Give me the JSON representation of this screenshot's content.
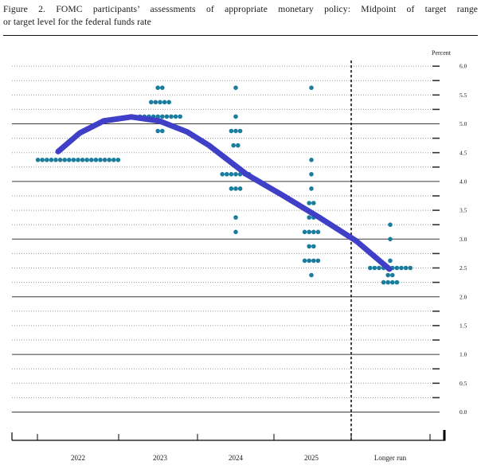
{
  "figure": {
    "title_line1": "Figure 2.  FOMC participants’ assessments of appropriate monetary policy:  Midpoint of target range",
    "title_line2": "or target level for the federal funds rate"
  },
  "colors": {
    "dot": "#1a7d9e",
    "curve": "#3f3fc8",
    "solid_grid": "#3a3a3a",
    "dotted_grid": "#8f8f8f",
    "axis": "#000000",
    "text": "#1a1a1a"
  },
  "chart_data": {
    "type": "scatter",
    "title": "FOMC participants' assessments of appropriate monetary policy: Midpoint of target range or target level for the federal funds rate",
    "ylabel": "Percent",
    "ylim": [
      0.0,
      6.0
    ],
    "grid_step": 0.25,
    "solid_gridlines": [
      0,
      1,
      2,
      3,
      4,
      5
    ],
    "ytick_step": 0.5,
    "ytick_labels": [
      "0.0",
      "0.5",
      "1.0",
      "1.5",
      "2.0",
      "2.5",
      "3.0",
      "3.5",
      "4.0",
      "4.5",
      "5.0",
      "5.5",
      "6.0"
    ],
    "categories": [
      "2022",
      "2023",
      "2024",
      "2025",
      "Longer run"
    ],
    "separator_after_category": "2025",
    "columns": [
      {
        "year": "2022",
        "dots": [
          {
            "rate": 4.375,
            "count": 19
          }
        ]
      },
      {
        "year": "2023",
        "dots": [
          {
            "rate": 5.625,
            "count": 2
          },
          {
            "rate": 5.375,
            "count": 5
          },
          {
            "rate": 5.125,
            "count": 10
          },
          {
            "rate": 4.875,
            "count": 2
          }
        ]
      },
      {
        "year": "2024",
        "dots": [
          {
            "rate": 5.625,
            "count": 1
          },
          {
            "rate": 5.125,
            "count": 1
          },
          {
            "rate": 4.875,
            "count": 3
          },
          {
            "rate": 4.625,
            "count": 2
          },
          {
            "rate": 4.125,
            "count": 7
          },
          {
            "rate": 3.875,
            "count": 3
          },
          {
            "rate": 3.375,
            "count": 1
          },
          {
            "rate": 3.125,
            "count": 1
          }
        ]
      },
      {
        "year": "2025",
        "dots": [
          {
            "rate": 5.625,
            "count": 1
          },
          {
            "rate": 4.375,
            "count": 1
          },
          {
            "rate": 4.125,
            "count": 1
          },
          {
            "rate": 3.875,
            "count": 1
          },
          {
            "rate": 3.625,
            "count": 2
          },
          {
            "rate": 3.375,
            "count": 2
          },
          {
            "rate": 3.125,
            "count": 4
          },
          {
            "rate": 2.875,
            "count": 2
          },
          {
            "rate": 2.625,
            "count": 4
          },
          {
            "rate": 2.375,
            "count": 1
          }
        ]
      },
      {
        "year": "Longer run",
        "dots": [
          {
            "rate": 3.25,
            "count": 1
          },
          {
            "rate": 3.0,
            "count": 1
          },
          {
            "rate": 2.625,
            "count": 1
          },
          {
            "rate": 2.5,
            "count": 10
          },
          {
            "rate": 2.375,
            "count": 2
          },
          {
            "rate": 2.25,
            "count": 4
          }
        ]
      }
    ],
    "annotation_curve": {
      "description": "thick blue arc rising to a peak near 2023 then falling to the longer-run 2.5 level",
      "stroke_width": 7,
      "points": [
        [
          -0.243,
          4.52
        ],
        [
          0.019,
          4.84
        ],
        [
          0.311,
          5.05
        ],
        [
          0.65,
          5.12
        ],
        [
          0.99,
          5.05
        ],
        [
          1.358,
          4.86
        ],
        [
          1.642,
          4.63
        ],
        [
          2.147,
          4.12
        ],
        [
          2.621,
          3.76
        ],
        [
          3.095,
          3.38
        ],
        [
          3.568,
          2.97
        ],
        [
          3.99,
          2.48
        ]
      ]
    }
  }
}
